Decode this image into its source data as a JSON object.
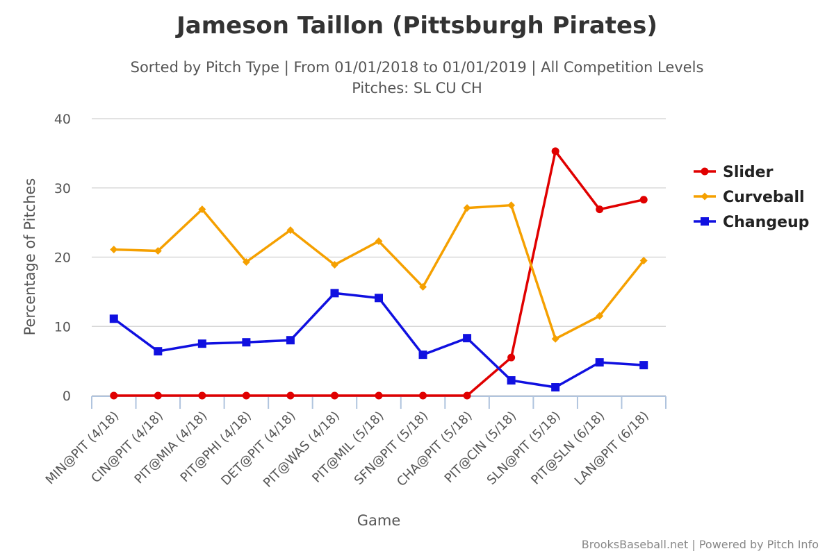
{
  "chart_data": {
    "type": "line",
    "title": "Jameson Taillon (Pittsburgh Pirates)",
    "subtitle_line1": "Sorted by Pitch Type | From 01/01/2018 to 01/01/2019 | All Competition Levels",
    "subtitle_line2": "Pitches: SL CU CH",
    "xlabel": "Game",
    "ylabel": "Percentage of Pitches",
    "ylim": [
      0,
      40
    ],
    "yticks": [
      "0",
      "10",
      "20",
      "30",
      "40"
    ],
    "grid": true,
    "legend_position": "right",
    "categories": [
      "MIN@PIT (4/18)",
      "CIN@PIT (4/18)",
      "PIT@MIA (4/18)",
      "PIT@PHI (4/18)",
      "DET@PIT (4/18)",
      "PIT@WAS (4/18)",
      "PIT@MIL (5/18)",
      "SFN@PIT (5/18)",
      "CHA@PIT (5/18)",
      "PIT@CIN (5/18)",
      "SLN@PIT (5/18)",
      "PIT@SLN (6/18)",
      "LAN@PIT (6/18)"
    ],
    "series": [
      {
        "name": "Slider",
        "color": "#e00000",
        "marker": "circle",
        "values": [
          0,
          0,
          0,
          0,
          0,
          0,
          0,
          0,
          0,
          5.5,
          35.3,
          26.9,
          28.3
        ]
      },
      {
        "name": "Curveball",
        "color": "#f5a000",
        "marker": "diamond",
        "values": [
          21.1,
          20.9,
          26.9,
          19.3,
          23.9,
          18.9,
          22.3,
          15.7,
          27.1,
          27.5,
          8.2,
          11.5,
          19.5
        ]
      },
      {
        "name": "Changeup",
        "color": "#1010e0",
        "marker": "square",
        "values": [
          11.1,
          6.4,
          7.5,
          7.7,
          8.0,
          14.8,
          14.1,
          5.9,
          8.3,
          2.2,
          1.2,
          4.8,
          4.4
        ]
      }
    ],
    "credits": "BrooksBaseball.net | Powered by Pitch Info"
  }
}
